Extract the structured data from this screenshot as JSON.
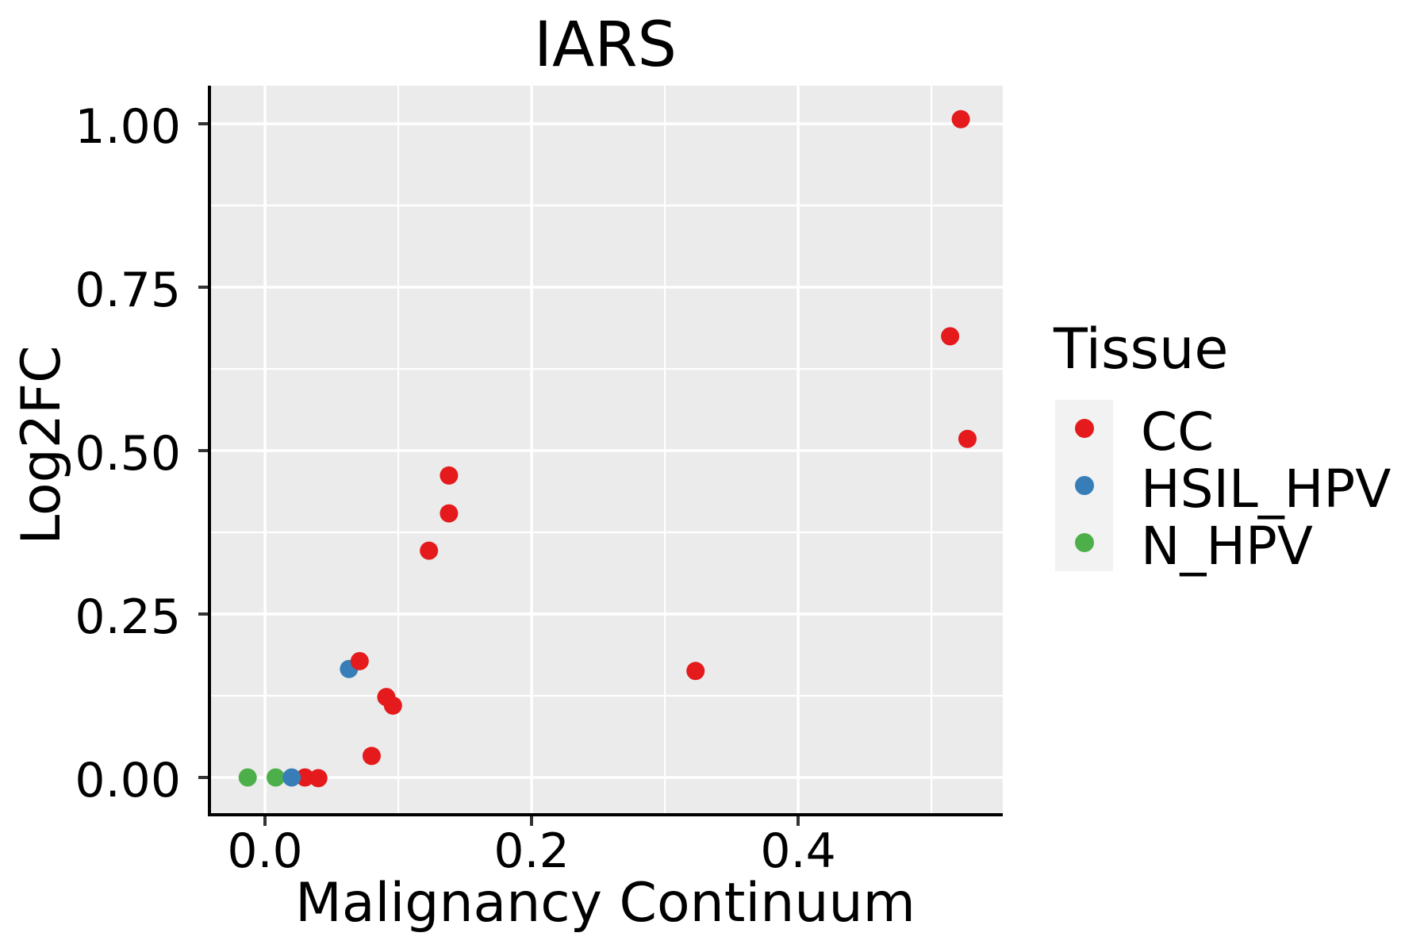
{
  "title": "IARS",
  "axes": {
    "x_label": "Malignancy Continuum",
    "y_label": "Log2FC"
  },
  "legend": {
    "title": "Tissue",
    "items": [
      {
        "label": "CC",
        "color": "#E41A1C"
      },
      {
        "label": "HSIL_HPV",
        "color": "#377EB8"
      },
      {
        "label": "N_HPV",
        "color": "#4DAF4A"
      }
    ]
  },
  "colors": {
    "panel_background": "#EBEBEB",
    "gridline": "#FFFFFF",
    "axis_line": "#000000",
    "tick_mark": "#333333",
    "legend_key_background": "#F2F2F2",
    "text": "#000000"
  },
  "chart_data": {
    "type": "scatter",
    "title": "IARS",
    "xlabel": "Malignancy Continuum",
    "ylabel": "Log2FC",
    "xlim": [
      -0.0405,
      0.5535
    ],
    "ylim": [
      -0.0546,
      1.0583
    ],
    "grid": true,
    "legend_position": "right",
    "point_radius": 11.5,
    "x_ticks": [
      {
        "value": 0.0,
        "label": "0.0"
      },
      {
        "value": 0.2,
        "label": "0.2"
      },
      {
        "value": 0.4,
        "label": "0.4"
      }
    ],
    "y_ticks": [
      {
        "value": 0.0,
        "label": "0.00"
      },
      {
        "value": 0.25,
        "label": "0.25"
      },
      {
        "value": 0.5,
        "label": "0.50"
      },
      {
        "value": 0.75,
        "label": "0.75"
      },
      {
        "value": 1.0,
        "label": "1.00"
      }
    ],
    "x_minor": [
      0.1,
      0.3,
      0.5
    ],
    "y_minor": [
      0.125,
      0.375,
      0.625,
      0.875
    ],
    "tissue_colors": {
      "CC": "#E41A1C",
      "HSIL_HPV": "#377EB8",
      "N_HPV": "#4DAF4A"
    },
    "points": [
      {
        "tissue": "N_HPV",
        "x": -0.013,
        "y": 0.0
      },
      {
        "tissue": "N_HPV",
        "x": 0.008,
        "y": 0.0
      },
      {
        "tissue": "CC",
        "x": 0.03,
        "y": 0.0
      },
      {
        "tissue": "HSIL_HPV",
        "x": 0.02,
        "y": 0.0
      },
      {
        "tissue": "CC",
        "x": 0.04,
        "y": -0.001
      },
      {
        "tissue": "HSIL_HPV",
        "x": 0.063,
        "y": 0.166
      },
      {
        "tissue": "CC",
        "x": 0.071,
        "y": 0.178
      },
      {
        "tissue": "CC",
        "x": 0.08,
        "y": 0.033
      },
      {
        "tissue": "CC",
        "x": 0.091,
        "y": 0.123
      },
      {
        "tissue": "CC",
        "x": 0.096,
        "y": 0.11
      },
      {
        "tissue": "CC",
        "x": 0.123,
        "y": 0.347
      },
      {
        "tissue": "CC",
        "x": 0.138,
        "y": 0.404
      },
      {
        "tissue": "CC",
        "x": 0.138,
        "y": 0.462
      },
      {
        "tissue": "CC",
        "x": 0.323,
        "y": 0.163
      },
      {
        "tissue": "CC",
        "x": 0.514,
        "y": 0.675
      },
      {
        "tissue": "CC",
        "x": 0.527,
        "y": 0.518
      },
      {
        "tissue": "CC",
        "x": 0.522,
        "y": 1.007
      }
    ]
  }
}
